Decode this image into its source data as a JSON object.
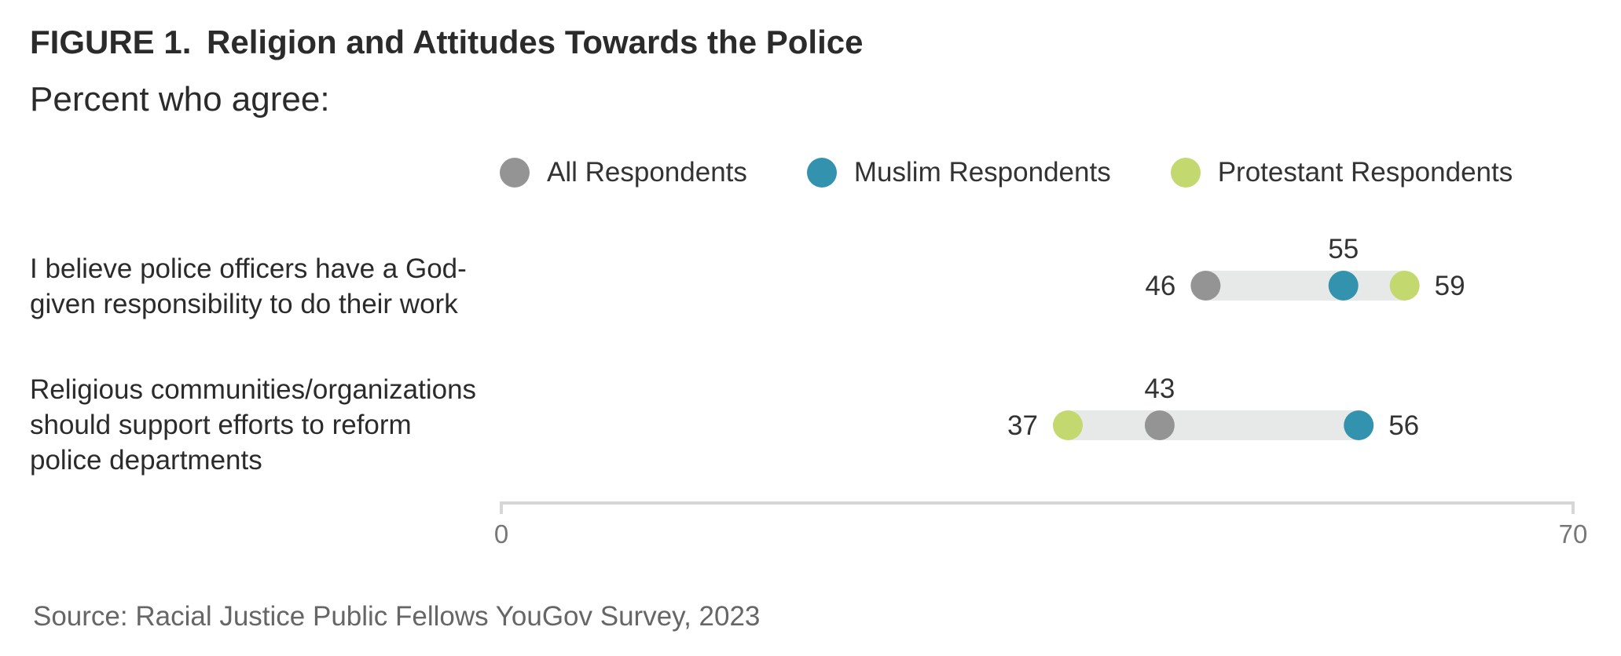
{
  "header": {
    "figure_label": "FIGURE 1.",
    "title": "Religion and Attitudes Towards the Police",
    "subtitle": "Percent who agree:"
  },
  "legend": [
    {
      "label": "All Respondents",
      "color": "#949494"
    },
    {
      "label": "Muslim Respondents",
      "color": "#3393ae"
    },
    {
      "label": "Protestant Respondents",
      "color": "#c3d970"
    }
  ],
  "rows": [
    {
      "label_lines": [
        "I believe police officers have a God-",
        "given responsibility to do their work"
      ]
    },
    {
      "label_lines": [
        "Religious communities/organizations",
        "should support efforts to reform",
        "police departments"
      ]
    }
  ],
  "source": "Source: Racial Justice Public Fellows YouGov Survey, 2023",
  "chart_data": {
    "type": "dot",
    "title": "Religion and Attitudes Towards the Police",
    "subtitle": "Percent who agree:",
    "categories": [
      "I believe police officers have a God-given responsibility to do their work",
      "Religious communities/organizations should support efforts to reform police departments"
    ],
    "series": [
      {
        "name": "All Respondents",
        "color": "#949494",
        "values": [
          46,
          43
        ]
      },
      {
        "name": "Muslim Respondents",
        "color": "#3393ae",
        "values": [
          55,
          56
        ]
      },
      {
        "name": "Protestant Respondents",
        "color": "#c3d970",
        "values": [
          59,
          37
        ]
      }
    ],
    "xlim": [
      0,
      70
    ],
    "ticks": [
      0,
      70
    ],
    "tick_labels": [
      "0",
      "70"
    ],
    "grid": false,
    "legend_position": "top"
  }
}
